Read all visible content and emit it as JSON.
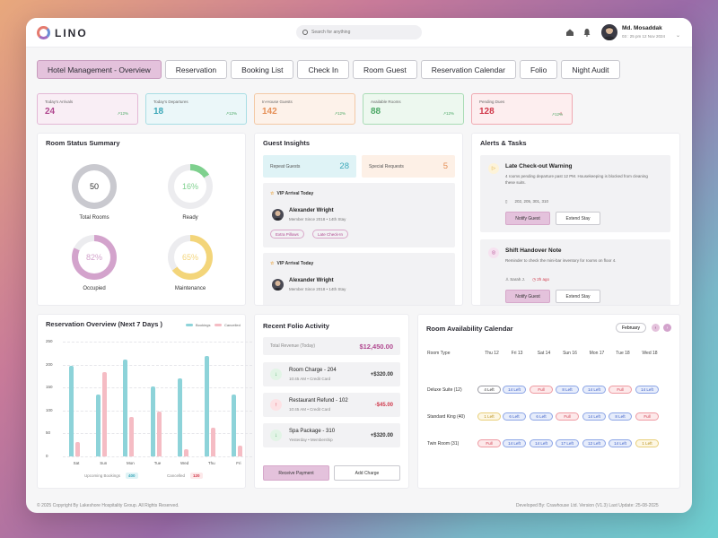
{
  "header": {
    "brand": "LINO",
    "search_placeholder": "Search for anything",
    "user_name": "Md. Mosaddak",
    "user_datetime": "03 : 25 pm  12 Nov 2024"
  },
  "tabs": [
    {
      "label": "Hotel Management - Overview",
      "active": true
    },
    {
      "label": "Reservation"
    },
    {
      "label": "Booking List"
    },
    {
      "label": "Check In"
    },
    {
      "label": "Room Guest"
    },
    {
      "label": "Reservation Calendar"
    },
    {
      "label": "Folio"
    },
    {
      "label": "Night Audit"
    }
  ],
  "kpis": [
    {
      "label": "Today's Arrivals",
      "value": "24",
      "trend": "12%",
      "color": "#b0478f",
      "bg": "#f9eef5",
      "border": "#e3b8d6"
    },
    {
      "label": "Today's Departures",
      "value": "18",
      "trend": "12%",
      "color": "#3ba7b8",
      "bg": "#ebf7f9",
      "border": "#a8dde4"
    },
    {
      "label": "In-House Guests",
      "value": "142",
      "trend": "12%",
      "color": "#e59058",
      "bg": "#fdf2ea",
      "border": "#f3c9a6"
    },
    {
      "label": "Available Rooms",
      "value": "88",
      "trend": "12%",
      "color": "#4ca866",
      "bg": "#edf8ef",
      "border": "#a9dcb5"
    },
    {
      "label": "Pending Dues",
      "value": "128",
      "trend": "12%",
      "color": "#d0394b",
      "bg": "#fdeeef",
      "border": "#f0a9b1"
    }
  ],
  "room_status": {
    "title": "Room Status Summary",
    "items": [
      {
        "label": "Total Rooms",
        "value": "50",
        "fraction": 1.0,
        "color": "#c9c9cf"
      },
      {
        "label": "Ready",
        "value": "16%",
        "fraction": 0.16,
        "color": "#7ed08e"
      },
      {
        "label": "Occupied",
        "value": "82%",
        "fraction": 0.82,
        "color": "#d3a3cc"
      },
      {
        "label": "Maintenance",
        "value": "65%",
        "fraction": 0.65,
        "color": "#f3d57a"
      }
    ]
  },
  "guest_insights": {
    "title": "Guest Insights",
    "repeat_label": "Repeat Guests",
    "repeat_value": "28",
    "special_label": "Special Requests",
    "special_value": "5",
    "vips": [
      {
        "heading": "VIP Arrival Today",
        "name": "Alexander Wright",
        "sub": "Member Since 2018 • 14th Stay",
        "chips": [
          "Extra Pillows",
          "Late Check-In"
        ]
      },
      {
        "heading": "VIP Arrival Today",
        "name": "Alexander Wright",
        "sub": "Member Since 2018 • 14th Stay",
        "chips": []
      }
    ]
  },
  "alerts": {
    "title": "Alerts & Tasks",
    "items": [
      {
        "title": "Late Check-out Warning",
        "desc": "4 rooms pending departure past 12 PM. Housekeeping is blocked from cleaning these suits.",
        "meta1": "202, 205, 301, 310",
        "meta2": "",
        "btn1": "Notify Guest",
        "btn2": "Extend Stay"
      },
      {
        "title": "Shift Handover Note",
        "desc": "Reminder to check the mini-bar inventory for rooms on floor 4.",
        "meta1": "Sarah J.",
        "meta2": "2h ago",
        "btn1": "Notify Guest",
        "btn2": "Extend Stay"
      }
    ]
  },
  "reservation_chart": {
    "title": "Reservation Overview (Next 7 Days )",
    "legend_bookings": "Bookings",
    "legend_cancelled": "Cancelled",
    "footer_bookings_label": "Upcoming Bookings",
    "footer_bookings_value": "400",
    "footer_cancelled_label": "Cancelled",
    "footer_cancelled_value": "120"
  },
  "chart_data": {
    "type": "bar",
    "title": "Reservation Overview (Next 7 Days )",
    "categories": [
      "Sat",
      "Sun",
      "Mon",
      "Tue",
      "Wed",
      "Thu",
      "Fri"
    ],
    "yticks": [
      "250",
      "200",
      "150",
      "100",
      "50",
      "0"
    ],
    "ylim": [
      0,
      250
    ],
    "series": [
      {
        "name": "Bookings",
        "color": "#8dd3d9",
        "values": [
          198,
          135,
          210,
          152,
          170,
          218,
          135
        ]
      },
      {
        "name": "Cancelled",
        "color": "#f5bcc4",
        "values": [
          32,
          183,
          85,
          97,
          15,
          63,
          23
        ]
      }
    ],
    "legend": "top-right",
    "grid": true
  },
  "folio": {
    "title": "Recent Folio Activity",
    "total_label": "Total Revenue (Today)",
    "total_value": "$12,450.00",
    "items": [
      {
        "name": "Room Charge - 204",
        "sub": "10:45 AM • Credit Card",
        "amount": "+$320.00",
        "type": "credit"
      },
      {
        "name": "Restaurant Refund - 102",
        "sub": "10:45 AM • Credit Card",
        "amount": "-$45.00",
        "type": "debit"
      },
      {
        "name": "Spa Package - 310",
        "sub": "Yesterday • Membership",
        "amount": "+$320.00",
        "type": "credit"
      }
    ],
    "btn_receive": "Receive Payment",
    "btn_charge": "Add Charge"
  },
  "calendar": {
    "title": "Room Availability Calendar",
    "month": "February",
    "col_header": "Room Type",
    "days": [
      "Thu 12",
      "Fri 13",
      "Sat 14",
      "Sun 16",
      "Mon 17",
      "Tue 18",
      "Wed 18"
    ],
    "rows": [
      {
        "room": "Deluxe Suite (12)",
        "cells": [
          {
            "t": "4 Left",
            "s": "neutral"
          },
          {
            "t": "14 Left",
            "s": "available"
          },
          {
            "t": "Full",
            "s": "full"
          },
          {
            "t": "8 Left",
            "s": "available"
          },
          {
            "t": "14 Left",
            "s": "available"
          },
          {
            "t": "Full",
            "s": "full"
          },
          {
            "t": "14 Left",
            "s": "available"
          }
        ]
      },
      {
        "room": "Standard King (40)",
        "cells": [
          {
            "t": "1 Left",
            "s": "limited"
          },
          {
            "t": "6 Left",
            "s": "available"
          },
          {
            "t": "6 Left",
            "s": "available"
          },
          {
            "t": "Full",
            "s": "full"
          },
          {
            "t": "14 Left",
            "s": "available"
          },
          {
            "t": "8 Left",
            "s": "available"
          },
          {
            "t": "Full",
            "s": "full"
          }
        ]
      },
      {
        "room": "Twin Room (31)",
        "cells": [
          {
            "t": "Full",
            "s": "full"
          },
          {
            "t": "14 Left",
            "s": "available"
          },
          {
            "t": "14 Left",
            "s": "available"
          },
          {
            "t": "17 Left",
            "s": "available"
          },
          {
            "t": "12 Left",
            "s": "available"
          },
          {
            "t": "14 Left",
            "s": "available"
          },
          {
            "t": "1 Left",
            "s": "limited"
          }
        ]
      }
    ]
  },
  "footer": {
    "copyright": "© 2025 Copyright By Lakeshore Hospitality Group. All Rights Reserved.",
    "developer": "Developed By: Crawhouse Ltd.  Version (V1.3)  Last Update: 25-08-2025"
  }
}
